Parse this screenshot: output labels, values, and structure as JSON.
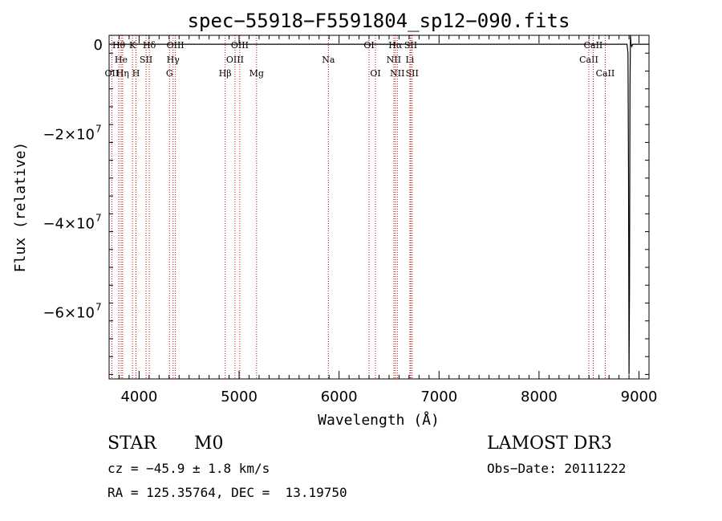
{
  "chart_data": {
    "type": "line",
    "title": "spec−55918−F5591804_sp12−090.fits",
    "xlabel": "Wavelength (Å)",
    "ylabel": "Flux (relative)",
    "xlim": [
      3700,
      9100
    ],
    "ylim": [
      -75000000,
      2000000
    ],
    "xticks": [
      {
        "value": 4000,
        "label": "4000"
      },
      {
        "value": 5000,
        "label": "5000"
      },
      {
        "value": 6000,
        "label": "6000"
      },
      {
        "value": 7000,
        "label": "7000"
      },
      {
        "value": 8000,
        "label": "8000"
      },
      {
        "value": 9000,
        "label": "9000"
      }
    ],
    "yticks": [
      {
        "value": 0,
        "label": "0",
        "exp": ""
      },
      {
        "value": -20000000,
        "label": "−2×10",
        "exp": "7"
      },
      {
        "value": -40000000,
        "label": "−4×10",
        "exp": "7"
      },
      {
        "value": -60000000,
        "label": "−6×10",
        "exp": "7"
      }
    ],
    "series": [
      {
        "name": "flux",
        "color": "#000000",
        "x": [
          3700,
          3800,
          4200,
          5000,
          6000,
          7000,
          8000,
          8800,
          8880,
          8890,
          8895,
          8900,
          8905,
          8910,
          8915,
          8920,
          8928,
          8936,
          9100
        ],
        "y": [
          0,
          0,
          0,
          0,
          0,
          0,
          0,
          0,
          0,
          -2000000,
          -30000000,
          -74000000,
          -55000000,
          -10000000,
          2000000,
          0,
          -500000,
          0,
          0
        ]
      }
    ],
    "line_color": "#cc0000",
    "lines": [
      {
        "label": "Hθ",
        "wave": 3797,
        "row": 0
      },
      {
        "label": "OII",
        "wave": 3727,
        "row": 2
      },
      {
        "label": "He",
        "wave": 3820,
        "row": 1
      },
      {
        "label": "Hη",
        "wave": 3835,
        "row": 2
      },
      {
        "label": "K",
        "wave": 3934,
        "row": 0
      },
      {
        "label": "H",
        "wave": 3969,
        "row": 2
      },
      {
        "label": "SII",
        "wave": 4070,
        "row": 1
      },
      {
        "label": "Hδ",
        "wave": 4102,
        "row": 0
      },
      {
        "label": "G",
        "wave": 4304,
        "row": 2
      },
      {
        "label": "OIII",
        "wave": 4363,
        "row": 0
      },
      {
        "label": "Hγ",
        "wave": 4340,
        "row": 1
      },
      {
        "label": "Hβ",
        "wave": 4861,
        "row": 2
      },
      {
        "label": "OIII",
        "wave": 4959,
        "row": 1
      },
      {
        "label": "OIII",
        "wave": 5007,
        "row": 0
      },
      {
        "label": "Mg",
        "wave": 5175,
        "row": 2
      },
      {
        "label": "Na",
        "wave": 5893,
        "row": 1
      },
      {
        "label": "OI",
        "wave": 6300,
        "row": 0
      },
      {
        "label": "OI",
        "wave": 6364,
        "row": 2
      },
      {
        "label": "NII",
        "wave": 6548,
        "row": 1
      },
      {
        "label": "Hα",
        "wave": 6563,
        "row": 0
      },
      {
        "label": "NII",
        "wave": 6583,
        "row": 2
      },
      {
        "label": "Li",
        "wave": 6708,
        "row": 1
      },
      {
        "label": "SII",
        "wave": 6717,
        "row": 0
      },
      {
        "label": "SII",
        "wave": 6731,
        "row": 2
      },
      {
        "label": "CaII",
        "wave": 8498,
        "row": 1
      },
      {
        "label": "CaII",
        "wave": 8542,
        "row": 0
      },
      {
        "label": "CaII",
        "wave": 8662,
        "row": 2
      }
    ]
  },
  "info": {
    "class": "STAR",
    "subclass": "M0",
    "cz_text": "cz = −45.9 ± 1.8 km/s",
    "radec_text": "RA = 125.35764, DEC =  13.19750",
    "survey": "LAMOST DR3",
    "obs_date_text": "Obs−Date: 20111222"
  }
}
